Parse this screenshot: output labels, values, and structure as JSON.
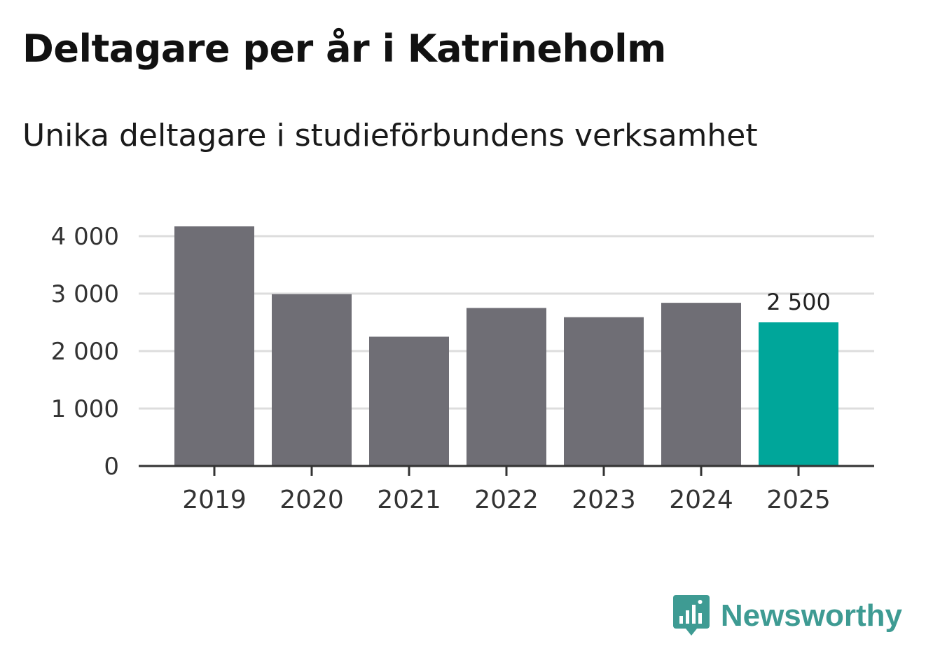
{
  "title": "Deltagare per år i Katrineholm",
  "subtitle": "Unika deltagare i studieförbundens verksamhet",
  "brand": {
    "name": "Newsworthy",
    "color": "#3e9b93",
    "icon": "newsworthy-logo-icon"
  },
  "colors": {
    "bar": "#6f6e75",
    "highlight": "#00a69a",
    "grid": "#dddddd",
    "axis": "#333333"
  },
  "chart_data": {
    "type": "bar",
    "title": "Deltagare per år i Katrineholm",
    "subtitle": "Unika deltagare i studieförbundens verksamhet",
    "categories": [
      "2019",
      "2020",
      "2021",
      "2022",
      "2023",
      "2024",
      "2025"
    ],
    "values": [
      4170,
      2990,
      2250,
      2750,
      2590,
      2840,
      2500
    ],
    "highlight_index": 6,
    "value_labels": [
      {
        "index": 6,
        "text": "2 500"
      }
    ],
    "y_ticks": [
      0,
      1000,
      2000,
      3000,
      4000
    ],
    "y_tick_labels": [
      "0",
      "1 000",
      "2 000",
      "3 000",
      "4 000"
    ],
    "ylim": [
      0,
      4000
    ],
    "xlabel": "",
    "ylabel": "",
    "grid": true
  }
}
